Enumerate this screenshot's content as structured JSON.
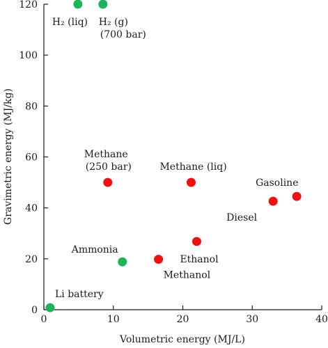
{
  "chart_data": {
    "type": "scatter",
    "title": "",
    "xlabel": "Volumetric energy (MJ/L)",
    "ylabel": "Gravimetric energy (MJ/kg)",
    "xlim": [
      0,
      40
    ],
    "ylim": [
      0,
      120
    ],
    "xticks": [
      "0",
      "10",
      "20",
      "30",
      "40"
    ],
    "yticks": [
      "0",
      "20",
      "40",
      "60",
      "80",
      "100",
      "120"
    ],
    "grid": false,
    "colors": {
      "green": "#1db35a",
      "red": "#ee1111"
    },
    "points": [
      {
        "x": 4.9,
        "y": 120,
        "color": "green",
        "label": [
          "H₂ (liq)"
        ]
      },
      {
        "x": 8.5,
        "y": 120,
        "color": "green",
        "label": [
          "H₂ (g)",
          "(700 bar)"
        ]
      },
      {
        "x": 9.2,
        "y": 50,
        "color": "red",
        "label": [
          "Methane",
          "(250 bar)"
        ]
      },
      {
        "x": 21.2,
        "y": 50,
        "color": "red",
        "label": [
          "Methane (liq)"
        ]
      },
      {
        "x": 36.4,
        "y": 44.5,
        "color": "red",
        "label": [
          "Gasoline"
        ]
      },
      {
        "x": 33.0,
        "y": 42.6,
        "color": "red",
        "label": [
          "Diesel"
        ]
      },
      {
        "x": 22.0,
        "y": 26.8,
        "color": "red",
        "label": [
          "Ethanol"
        ]
      },
      {
        "x": 16.5,
        "y": 19.8,
        "color": "red",
        "label": [
          "Methanol"
        ]
      },
      {
        "x": 11.3,
        "y": 18.8,
        "color": "green",
        "label": [
          "Ammonia"
        ]
      },
      {
        "x": 0.9,
        "y": 0.8,
        "color": "green",
        "label": [
          "Li battery"
        ]
      }
    ]
  }
}
